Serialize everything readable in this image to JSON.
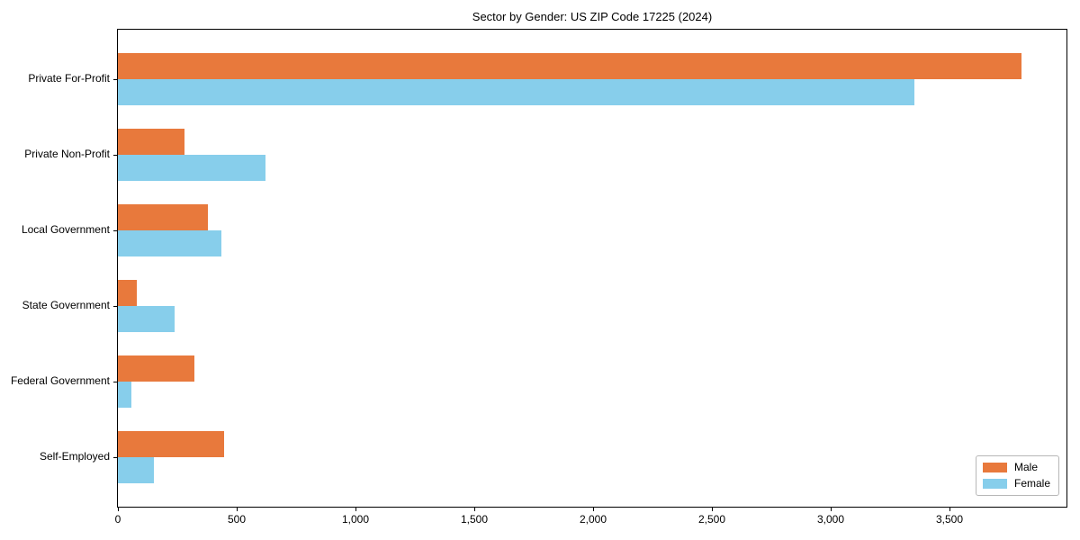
{
  "chart_data": {
    "type": "bar",
    "orientation": "horizontal",
    "title": "Sector by Gender: US ZIP Code 17225 (2024)",
    "categories": [
      "Private For-Profit",
      "Private Non-Profit",
      "Local Government",
      "State Government",
      "Federal Government",
      "Self-Employed"
    ],
    "series": [
      {
        "name": "Male",
        "color": "#e8793c",
        "values": [
          3800,
          280,
          380,
          80,
          320,
          445
        ]
      },
      {
        "name": "Female",
        "color": "#87ceeb",
        "values": [
          3350,
          620,
          435,
          240,
          55,
          150
        ]
      }
    ],
    "xlabel": "",
    "ylabel": "",
    "xlim": [
      0,
      3990
    ],
    "x_ticks": [
      0,
      500,
      1000,
      1500,
      2000,
      2500,
      3000,
      3500
    ],
    "x_tick_labels": [
      "0",
      "500",
      "1,000",
      "1,500",
      "2,000",
      "2,500",
      "3,000",
      "3,500"
    ],
    "grid": false,
    "legend_position": "lower right"
  }
}
